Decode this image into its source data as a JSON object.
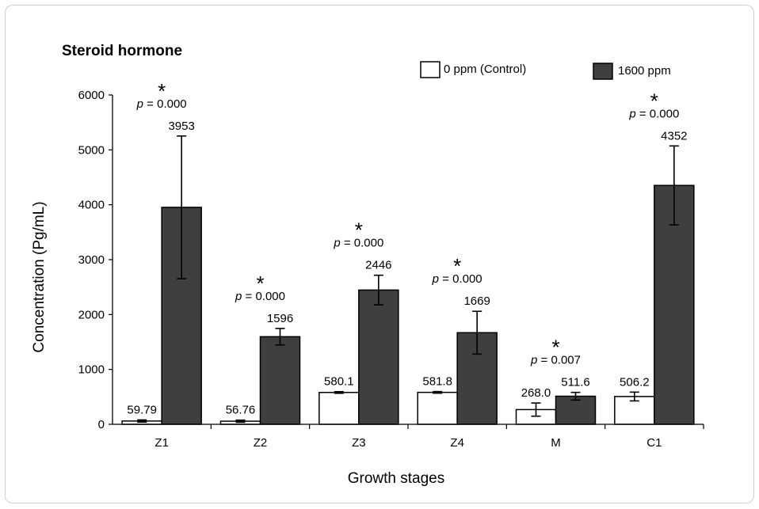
{
  "colors": {
    "control_fill": "#ffffff",
    "treated_fill": "#3f3f3f",
    "stroke": "#000000"
  },
  "chart_data": {
    "type": "bar",
    "title": "Steroid hormone",
    "xlabel": "Growth stages",
    "ylabel": "Concentration (Pg/mL)",
    "ylim": [
      0,
      6000
    ],
    "yticks": [
      "0",
      "1000",
      "2000",
      "3000",
      "4000",
      "5000",
      "6000"
    ],
    "legend_position": "top-right",
    "categories": [
      "Z1",
      "Z2",
      "Z3",
      "Z4",
      "M",
      "C1"
    ],
    "series": [
      {
        "name": "0 ppm (Control)",
        "values": [
          59.79,
          56.76,
          580.1,
          581.8,
          268.0,
          506.2
        ],
        "labels": [
          "59.79",
          "56.76",
          "580.1",
          "581.8",
          "268.0",
          "506.2"
        ],
        "errors": [
          20,
          20,
          15,
          15,
          120,
          80
        ]
      },
      {
        "name": "1600 ppm",
        "values": [
          3953,
          1596,
          2446,
          1669,
          511.6,
          4352
        ],
        "labels": [
          "3953",
          "1596",
          "2446",
          "1669",
          "511.6",
          "4352"
        ],
        "errors": [
          1300,
          150,
          270,
          390,
          70,
          720
        ]
      }
    ],
    "annotations": [
      {
        "category": "Z1",
        "star": "*",
        "p_prefix": "p",
        "p_text": " = 0.000"
      },
      {
        "category": "Z2",
        "star": "*",
        "p_prefix": "p",
        "p_text": " = 0.000"
      },
      {
        "category": "Z3",
        "star": "*",
        "p_prefix": "p",
        "p_text": " = 0.000"
      },
      {
        "category": "Z4",
        "star": "*",
        "p_prefix": "p",
        "p_text": " = 0.000"
      },
      {
        "category": "M",
        "star": "*",
        "p_prefix": "p",
        "p_text": " = 0.007"
      },
      {
        "category": "C1",
        "star": "*",
        "p_prefix": "p",
        "p_text": " = 0.000"
      }
    ]
  }
}
